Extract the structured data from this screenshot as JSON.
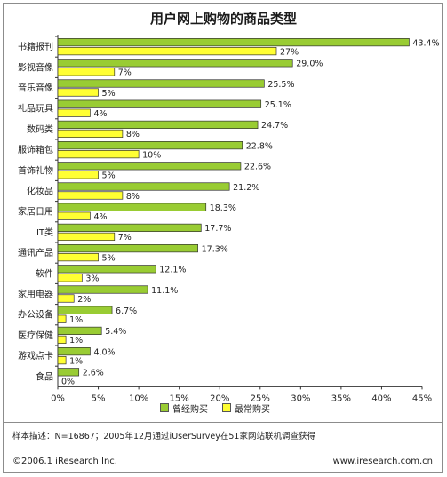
{
  "title": "用户网上购物的商品类型",
  "colors": {
    "series1": "#99cc33",
    "series2": "#ffff33"
  },
  "chart_data": {
    "type": "bar",
    "orientation": "horizontal",
    "categories": [
      "书籍报刊",
      "影视音像",
      "音乐音像",
      "礼品玩具",
      "数码类",
      "服饰箱包",
      "首饰礼物",
      "化妆品",
      "家居日用",
      "IT类",
      "通讯产品",
      "软件",
      "家用电器",
      "办公设备",
      "医疗保健",
      "游戏点卡",
      "食品"
    ],
    "series": [
      {
        "name": "曾经购买",
        "values": [
          43.4,
          29.0,
          25.5,
          25.1,
          24.7,
          22.8,
          22.6,
          21.2,
          18.3,
          17.7,
          17.3,
          12.1,
          11.1,
          6.7,
          5.4,
          4.0,
          2.6
        ],
        "labels": [
          "43.4%",
          "29.0%",
          "25.5%",
          "25.1%",
          "24.7%",
          "22.8%",
          "22.6%",
          "21.2%",
          "18.3%",
          "17.7%",
          "17.3%",
          "12.1%",
          "11.1%",
          "6.7%",
          "5.4%",
          "4.0%",
          "2.6%"
        ]
      },
      {
        "name": "最常购买",
        "values": [
          27,
          7,
          5,
          4,
          8,
          10,
          5,
          8,
          4,
          7,
          5,
          3,
          2,
          1,
          1,
          1,
          0
        ],
        "labels": [
          "27%",
          "7%",
          "5%",
          "4%",
          "8%",
          "10%",
          "5%",
          "8%",
          "4%",
          "7%",
          "5%",
          "3%",
          "2%",
          "1%",
          "1%",
          "1%",
          "0%"
        ]
      }
    ],
    "xticks": [
      "0%",
      "5%",
      "10%",
      "15%",
      "20%",
      "25%",
      "30%",
      "35%",
      "40%",
      "45%"
    ],
    "xlim": [
      0,
      45
    ],
    "grid": false,
    "legend_position": "bottom"
  },
  "legend": {
    "s1": "曾经购买",
    "s2": "最常购买"
  },
  "footer": {
    "note": "样本描述：N=16867；2005年12月通过iUserSurvey在51家网站联机调查获得",
    "copyright": "©2006.1 iResearch Inc.",
    "website": "www.iresearch.com.cn"
  }
}
